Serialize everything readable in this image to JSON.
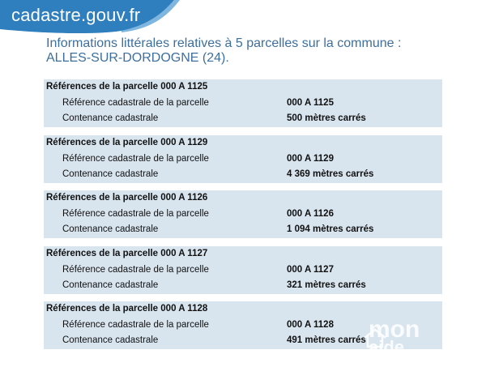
{
  "header": {
    "logo_text": "cadastre.gouv.fr",
    "banner_color": "#2f7fbf"
  },
  "title": "Informations littérales relatives à 5 parcelles sur la commune : ALLES-SUR-DORDOGNE (24).",
  "labels": {
    "reference": "Référence cadastrale de la parcelle",
    "contenance": "Contenance cadastrale"
  },
  "parcels": [
    {
      "heading": "Références de la parcelle 000 A 1125",
      "reference": "000 A 1125",
      "contenance": "500 mètres carrés"
    },
    {
      "heading": "Références de la parcelle 000 A 1129",
      "reference": "000 A 1129",
      "contenance": "4 369 mètres carrés"
    },
    {
      "heading": "Références de la parcelle 000 A 1126",
      "reference": "000 A 1126",
      "contenance": "1 094 mètres carrés"
    },
    {
      "heading": "Références de la parcelle 000 A 1127",
      "reference": "000 A 1127",
      "contenance": "321 mètres carrés"
    },
    {
      "heading": "Références de la parcelle 000 A 1128",
      "reference": "000 A 1128",
      "contenance": "491 mètres carrés"
    }
  ],
  "watermark": {
    "line1": "mon",
    "line2": "aide"
  }
}
